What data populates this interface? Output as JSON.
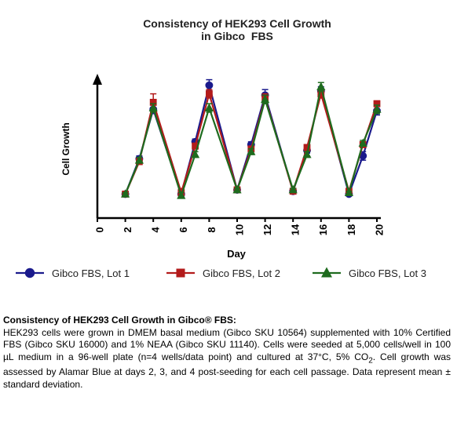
{
  "chart_data": {
    "type": "line",
    "title_lines": [
      "Consistency of HEK293 Cell Growth",
      "in Gibco  FBS"
    ],
    "xlabel": "Day",
    "ylabel": "Cell Growth",
    "xlim": [
      0,
      20
    ],
    "ylim": [
      0,
      100
    ],
    "x_ticks": [
      0,
      2,
      4,
      6,
      8,
      10,
      12,
      14,
      16,
      18,
      20
    ],
    "y_ticks_shown": false,
    "grid": false,
    "legend_position": "bottom",
    "x": [
      2,
      3,
      4,
      6,
      7,
      8,
      10,
      11,
      12,
      14,
      15,
      16,
      18,
      19,
      20
    ],
    "series": [
      {
        "name": "Gibco FBS, Lot 1",
        "color": "#1a1a8c",
        "marker": "circle",
        "values": [
          17,
          42,
          77,
          17,
          54,
          94,
          20,
          52,
          87,
          19,
          48,
          90,
          17,
          44,
          76
        ],
        "errors": [
          1,
          2,
          3,
          2,
          2,
          4,
          1,
          2,
          4,
          1,
          2,
          3,
          1,
          3,
          3
        ]
      },
      {
        "name": "Gibco FBS, Lot 2",
        "color": "#b31b1b",
        "marker": "square",
        "values": [
          17,
          40,
          82,
          18,
          51,
          88,
          20,
          49,
          85,
          19,
          50,
          88,
          19,
          52,
          81
        ],
        "errors": [
          1,
          2,
          6,
          3,
          2,
          3,
          1,
          2,
          3,
          1,
          2,
          3,
          1,
          2,
          2
        ]
      },
      {
        "name": "Gibco FBS, Lot 3",
        "color": "#1e6b1e",
        "marker": "triangle",
        "values": [
          17,
          41,
          78,
          16,
          45,
          78,
          20,
          47,
          84,
          20,
          45,
          93,
          18,
          53,
          77
        ],
        "errors": [
          1,
          2,
          3,
          2,
          2,
          3,
          1,
          2,
          3,
          1,
          2,
          3,
          1,
          2,
          3
        ]
      }
    ]
  },
  "caption": {
    "title": "Consistency of HEK293 Cell Growth in Gibco® FBS:",
    "body_before_sub": "HEK293 cells were grown in DMEM basal medium (Gibco SKU 10564) supplemented with 10% Certified FBS (Gibco SKU 16000) and 1% NEAA (Gibco SKU 11140). Cells were seeded at 5,000 cells/well in 100 µL medium in a 96-well plate (n=4 wells/data point) and cultured at 37°C, 5% CO",
    "subscript": "2",
    "body_after_sub": ". Cell growth was assessed by Alamar Blue at days 2, 3, and 4 post-seeding for each cell passage. Data represent mean ± standard deviation."
  }
}
